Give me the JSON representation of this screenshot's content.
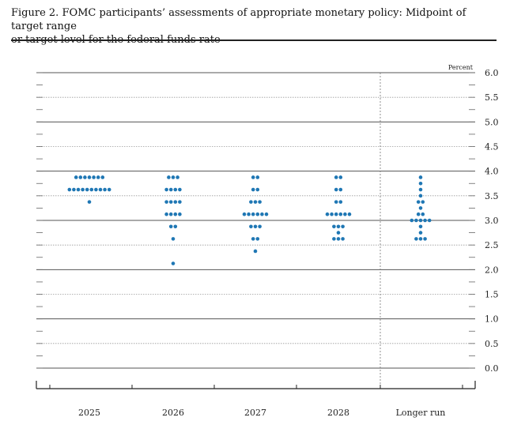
{
  "figure": {
    "title_line1": "Figure 2. FOMC participants’ assessments of appropriate monetary policy: Midpoint of target range",
    "title_line2": "or target level for the federal funds rate"
  },
  "chart_data": {
    "type": "scatter",
    "unit_label": "Percent",
    "categories": [
      "2025",
      "2026",
      "2027",
      "2028",
      "Longer run"
    ],
    "ylim": [
      0,
      6
    ],
    "y_ticks": [
      "0.0",
      "0.5",
      "1.0",
      "1.5",
      "2.0",
      "2.5",
      "3.0",
      "3.5",
      "4.0",
      "4.5",
      "5.0",
      "5.5",
      "6.0"
    ],
    "marker_color": "#1f77b4",
    "dot_plot": [
      {
        "category": "2025",
        "rates": [
          {
            "y": 3.875,
            "count": 7
          },
          {
            "y": 3.625,
            "count": 10
          },
          {
            "y": 3.375,
            "count": 1
          }
        ]
      },
      {
        "category": "2026",
        "rates": [
          {
            "y": 3.875,
            "count": 3
          },
          {
            "y": 3.625,
            "count": 4
          },
          {
            "y": 3.375,
            "count": 4
          },
          {
            "y": 3.125,
            "count": 4
          },
          {
            "y": 2.875,
            "count": 2
          },
          {
            "y": 2.625,
            "count": 1
          },
          {
            "y": 2.125,
            "count": 1
          }
        ]
      },
      {
        "category": "2027",
        "rates": [
          {
            "y": 3.875,
            "count": 2
          },
          {
            "y": 3.625,
            "count": 2
          },
          {
            "y": 3.375,
            "count": 3
          },
          {
            "y": 3.125,
            "count": 6
          },
          {
            "y": 2.875,
            "count": 3
          },
          {
            "y": 2.625,
            "count": 2
          },
          {
            "y": 2.375,
            "count": 1
          }
        ]
      },
      {
        "category": "2028",
        "rates": [
          {
            "y": 3.875,
            "count": 2
          },
          {
            "y": 3.625,
            "count": 2
          },
          {
            "y": 3.375,
            "count": 2
          },
          {
            "y": 3.125,
            "count": 6
          },
          {
            "y": 2.875,
            "count": 3
          },
          {
            "y": 2.75,
            "count": 1
          },
          {
            "y": 2.625,
            "count": 3
          }
        ]
      },
      {
        "category": "Longer run",
        "rates": [
          {
            "y": 3.875,
            "count": 1
          },
          {
            "y": 3.75,
            "count": 1
          },
          {
            "y": 3.625,
            "count": 1
          },
          {
            "y": 3.5,
            "count": 1
          },
          {
            "y": 3.375,
            "count": 2
          },
          {
            "y": 3.25,
            "count": 1
          },
          {
            "y": 3.125,
            "count": 2
          },
          {
            "y": 3.0,
            "count": 5
          },
          {
            "y": 2.875,
            "count": 1
          },
          {
            "y": 2.75,
            "count": 1
          },
          {
            "y": 2.625,
            "count": 3
          }
        ]
      }
    ]
  }
}
